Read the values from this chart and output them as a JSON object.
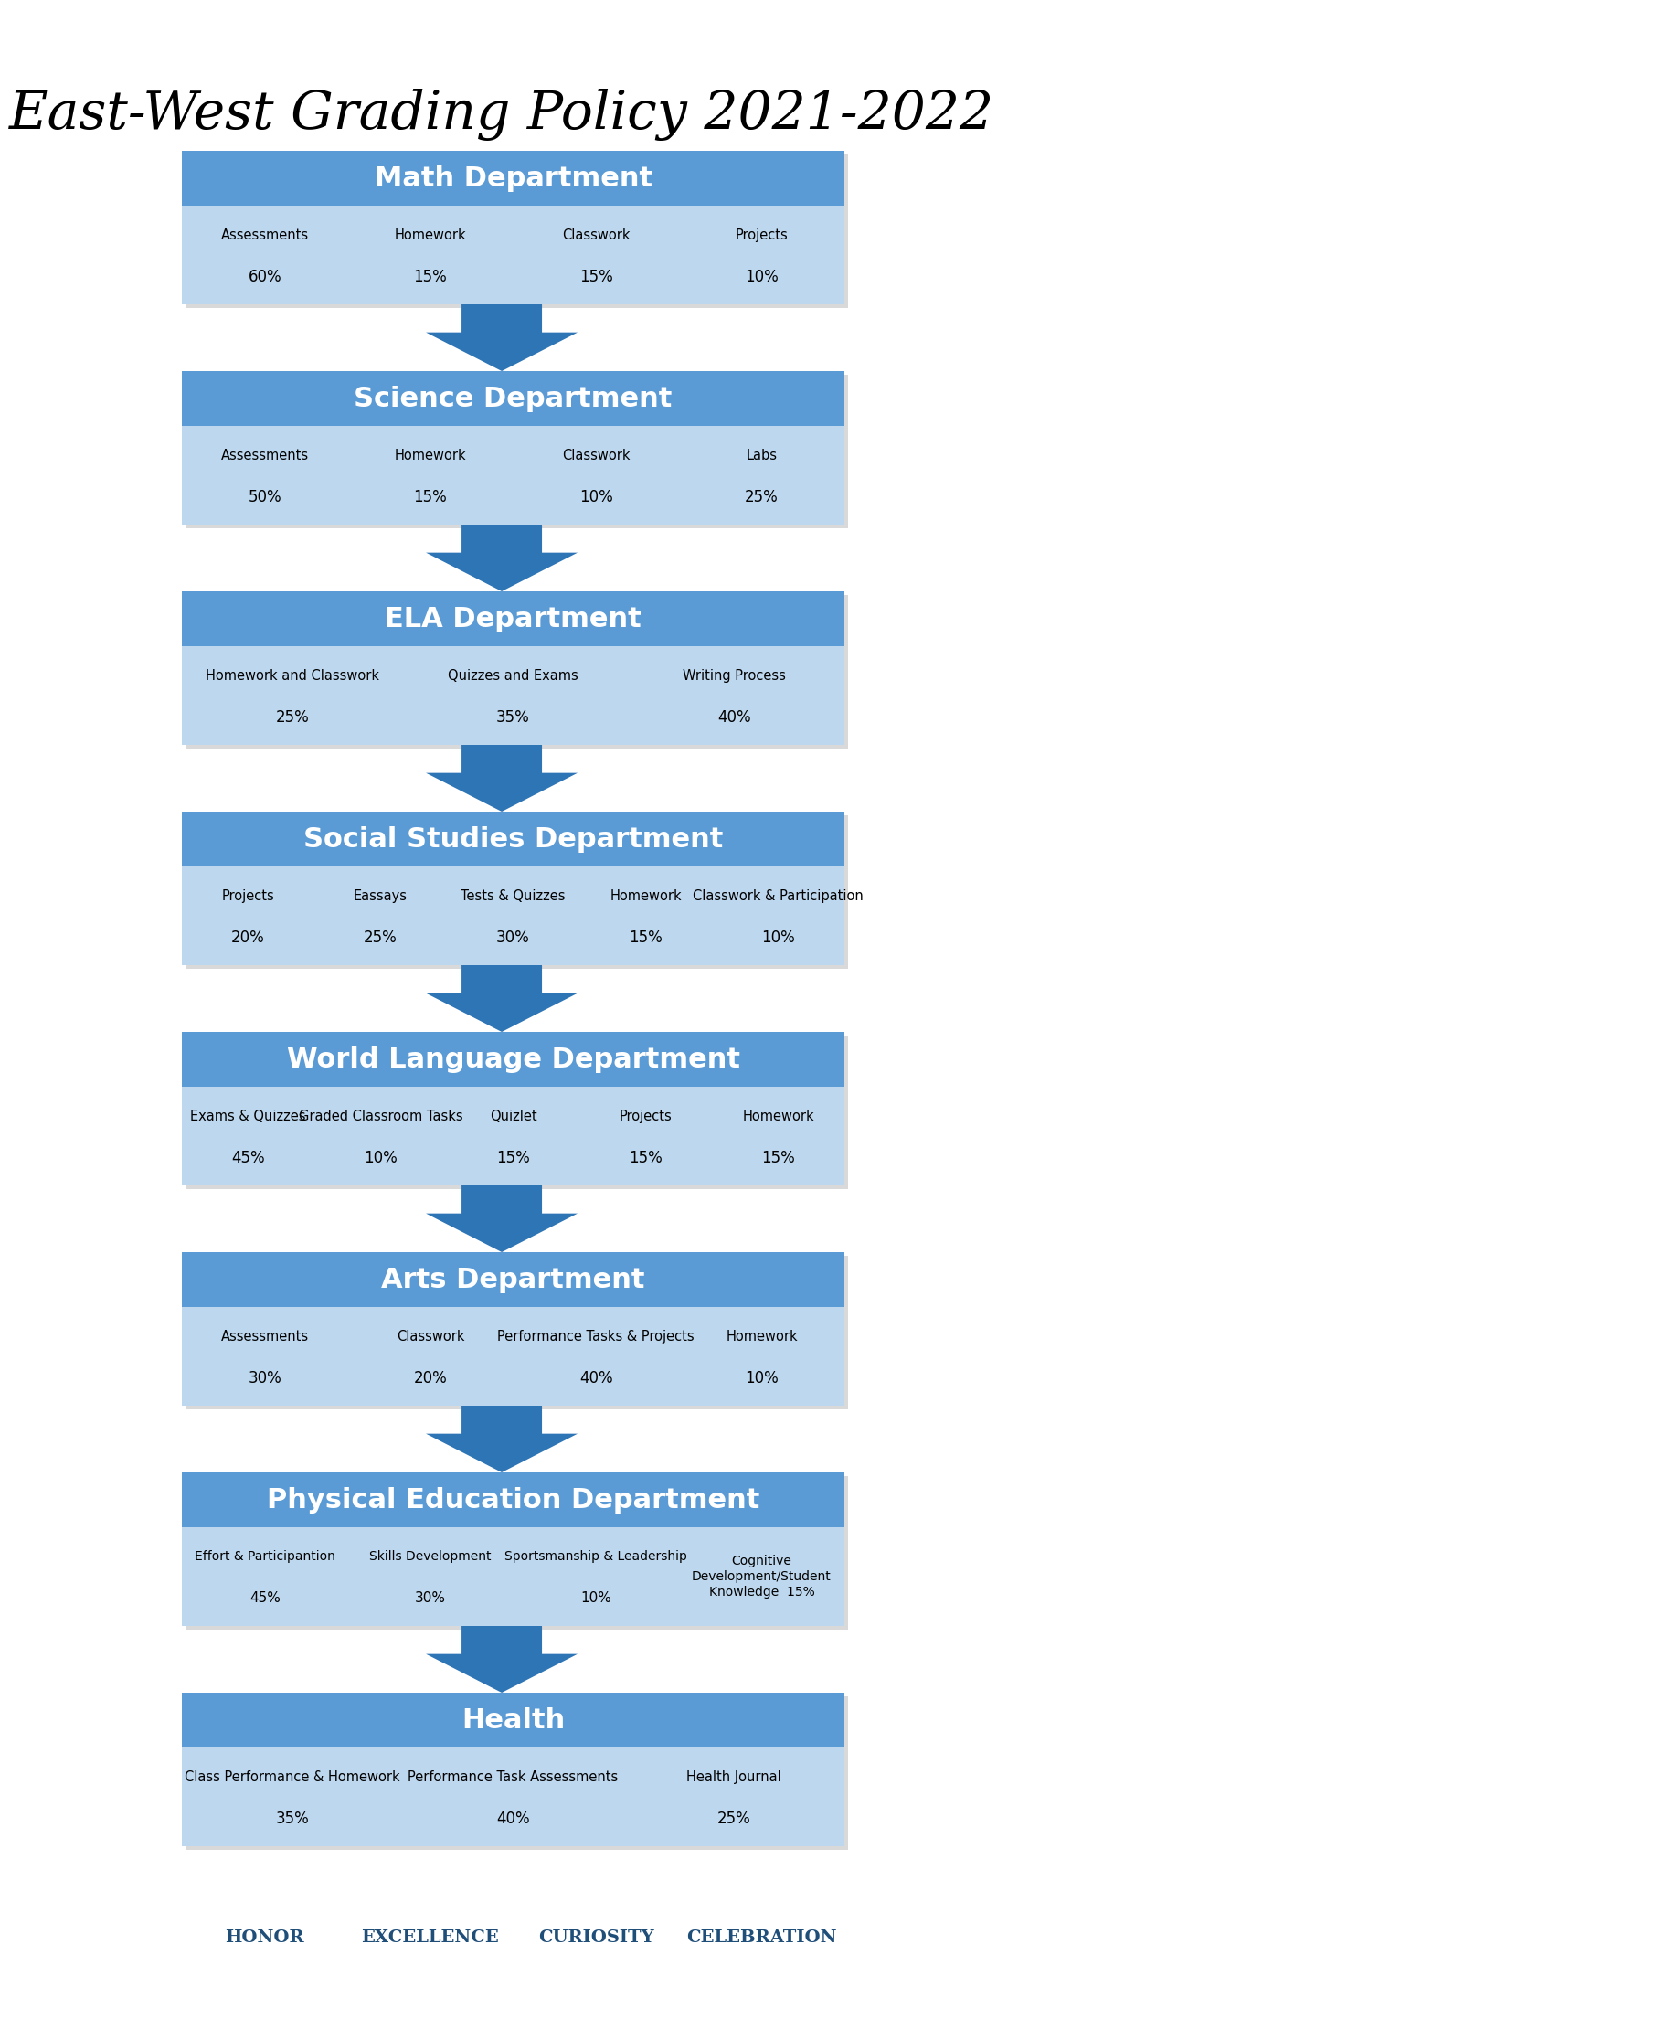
{
  "title": "East-West Grading Policy 2021-2022",
  "title_fontsize": 42,
  "header_color": "#5B9BD5",
  "subrow_color": "#BDD7EE",
  "header_text_color": "white",
  "subrow_text_color": "black",
  "arrow_color": "#2E75B6",
  "bg_color": "white",
  "footer_color": "#1F4E79",
  "footer_words": [
    "Honor",
    "Excellence",
    "Curiosity",
    "Celebration"
  ],
  "departments": [
    {
      "name": "Math Department",
      "items": [
        {
          "label": "Assessments",
          "value": "60%"
        },
        {
          "label": "Homework",
          "value": "15%"
        },
        {
          "label": "Classwork",
          "value": "15%"
        },
        {
          "label": "Projects",
          "value": "10%"
        }
      ]
    },
    {
      "name": "Science Department",
      "items": [
        {
          "label": "Assessments",
          "value": "50%"
        },
        {
          "label": "Homework",
          "value": "15%"
        },
        {
          "label": "Classwork",
          "value": "10%"
        },
        {
          "label": "Labs",
          "value": "25%"
        }
      ]
    },
    {
      "name": "ELA Department",
      "items": [
        {
          "label": "Homework and Classwork",
          "value": "25%"
        },
        {
          "label": "Quizzes and Exams",
          "value": "35%"
        },
        {
          "label": "Writing Process",
          "value": "40%"
        }
      ]
    },
    {
      "name": "Social Studies Department",
      "items": [
        {
          "label": "Projects",
          "value": "20%"
        },
        {
          "label": "Eassays",
          "value": "25%"
        },
        {
          "label": "Tests & Quizzes",
          "value": "30%"
        },
        {
          "label": "Homework",
          "value": "15%"
        },
        {
          "label": "Classwork & Participation",
          "value": "10%"
        }
      ]
    },
    {
      "name": "World Language Department",
      "items": [
        {
          "label": "Exams & Quizzes",
          "value": "45%"
        },
        {
          "label": "Graded Classroom Tasks",
          "value": "10%"
        },
        {
          "label": "Quizlet",
          "value": "15%"
        },
        {
          "label": "Projects",
          "value": "15%"
        },
        {
          "label": "Homework",
          "value": "15%"
        }
      ]
    },
    {
      "name": "Arts Department",
      "items": [
        {
          "label": "Assessments",
          "value": "30%"
        },
        {
          "label": "Classwork",
          "value": "20%"
        },
        {
          "label": "Performance Tasks & Projects",
          "value": "40%"
        },
        {
          "label": "Homework",
          "value": "10%"
        }
      ]
    },
    {
      "name": "Physical Education Department",
      "items": [
        {
          "label": "Effort & Participantion",
          "value": "45%"
        },
        {
          "label": "Skills Development",
          "value": "30%"
        },
        {
          "label": "Sportsmanship & Leadership",
          "value": "10%"
        },
        {
          "label": "Cognitive\nDevelopment/Student\nKnowledge  15%",
          "value": ""
        }
      ]
    },
    {
      "name": "Health",
      "items": [
        {
          "label": "Class Performance & Homework",
          "value": "35%"
        },
        {
          "label": "Performance Task Assessments",
          "value": "40%"
        },
        {
          "label": "Health Journal",
          "value": "25%"
        }
      ]
    }
  ]
}
